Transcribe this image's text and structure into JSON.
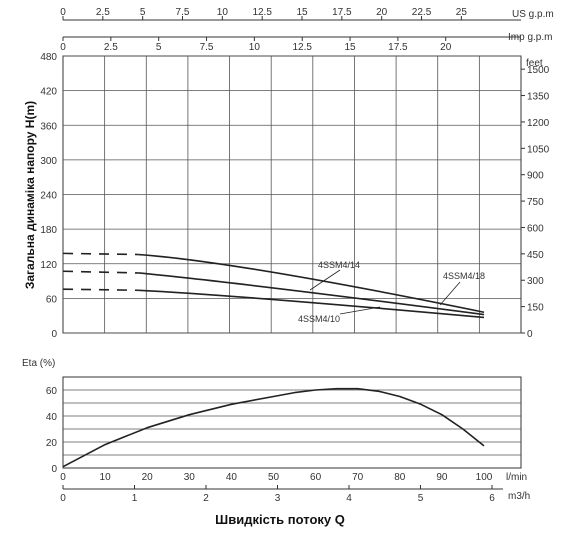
{
  "chart_data": [
    {
      "type": "line",
      "name_ref": "head-chart",
      "ylabel": "Загальна динаміка напору H(m)",
      "ylim": [
        0,
        480
      ],
      "y_ticks": [
        0,
        60,
        120,
        180,
        240,
        300,
        360,
        420,
        480
      ],
      "y2label": "feet",
      "y2_ticks": [
        "0",
        "150",
        "300",
        "450",
        "600",
        "750",
        "900",
        "1050",
        "1200",
        "1350",
        "1500"
      ],
      "top_axis_us": {
        "label": "US g.p.m",
        "ticks": [
          "0",
          "2.5",
          "5",
          "7.5",
          "10",
          "12.5",
          "15",
          "17.5",
          "20",
          "22.5",
          "25"
        ]
      },
      "top_axis_imp": {
        "label": "Imp g.p.m",
        "ticks": [
          "0",
          "2.5",
          "5",
          "7.5",
          "10",
          "12.5",
          "15",
          "17.5",
          "20"
        ]
      },
      "series": [
        {
          "label": "4SSM4/14",
          "x": [
            0,
            18,
            50,
            100
          ],
          "y": [
            138,
            136,
            105,
            36
          ],
          "dashed_to": 15
        },
        {
          "label": "4SSM4/18",
          "x": [
            0,
            18,
            50,
            100
          ],
          "y": [
            107,
            104,
            78,
            32
          ],
          "dashed_to": 15
        },
        {
          "label": "4SSM4/10",
          "x": [
            0,
            18,
            50,
            100
          ],
          "y": [
            76,
            74,
            58,
            27
          ],
          "dashed_to": 15
        }
      ]
    },
    {
      "type": "line",
      "name_ref": "eta-chart",
      "ylabel": "Eta (%)",
      "ylim": [
        0,
        70
      ],
      "y_ticks": [
        0,
        20,
        40,
        60
      ],
      "x_lmin": {
        "label": "l/min",
        "ticks": [
          0,
          10,
          20,
          30,
          40,
          50,
          60,
          70,
          80,
          90,
          100
        ]
      },
      "x_m3h": {
        "label": "m3/h",
        "ticks": [
          0,
          1,
          2,
          3,
          4,
          5,
          6
        ]
      },
      "xlabel": "Швидкість потоку Q",
      "series": [
        {
          "x": [
            0,
            10,
            20,
            30,
            40,
            50,
            55,
            60,
            65,
            70,
            75,
            80,
            85,
            90,
            95,
            100
          ],
          "y": [
            1,
            18,
            31,
            41,
            49,
            55,
            58,
            60,
            61,
            61,
            59,
            55,
            49,
            41,
            30,
            17
          ]
        }
      ]
    }
  ]
}
